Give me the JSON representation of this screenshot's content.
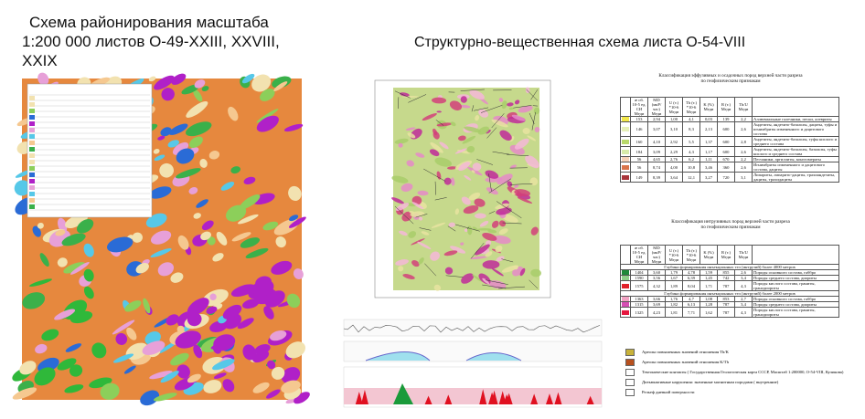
{
  "left": {
    "title_lines": [
      "Схема районирования масштаба",
      "1:200 000 листов О-49-XXIII, XXVIII,",
      "XXIX"
    ]
  },
  "right": {
    "title": "Структурно-вещественная схема листа О-54-VIII",
    "table1": {
      "title_lines": [
        "Классификация эффузивных и осадочных пород верхней части разреза",
        "по геофизическим признакам"
      ],
      "header": [
        "æ об. 10-5 ед. СИ Меди",
        "MD (мкР/час) Меди",
        "U (т.) *10-6 Меди",
        "Th (т.) *10-6 Меди",
        "K (%) Меди",
        "R (т.) Меди",
        "Th/U Меди"
      ],
      "rows": [
        {
          "color": "#f3e84a",
          "cells": [
            "153",
            "2,94",
            "1,00",
            "4,1",
            "0,03",
            "139",
            "2,2"
          ],
          "text": "Аллювиальные галечники, пески, алевриты"
        },
        {
          "color": "#e6f0b8",
          "cells": [
            "146",
            "3,07",
            "3,10",
            "8,3",
            "2,13",
            "600",
            "2,6"
          ],
          "text": "Андезиты, андезито-базальты, дациты, туфы и игнимбриты измененного и дацитового состава"
        },
        {
          "color": "#b9d96a",
          "cells": [
            "160",
            "4,10",
            "2,92",
            "5,5",
            "1,37",
            "600",
            "2,8"
          ],
          "text": "Андезиты, андезито-базальты, туфы кислого и среднего состава"
        },
        {
          "color": "#d7eaa9",
          "cells": [
            "184",
            "3,09",
            "2,29",
            "4,3",
            "1,17",
            "600",
            "2,6"
          ],
          "text": "Андезиты, андезито-базальты, базальты, туфы кислого и среднего состава"
        },
        {
          "color": "#f6d2b8",
          "cells": [
            "56",
            "4,65",
            "2,76",
            "6,2",
            "1,11",
            "670",
            "2,2"
          ],
          "text": "Песчаники, аргиллиты, конгломераты"
        },
        {
          "color": "#d9744a",
          "cells": [
            "56",
            "8,74",
            "4,00",
            "10,8",
            "3,46",
            "360",
            "2,6"
          ],
          "text": "Игнимбриты измененного и дацитового состава, дациты"
        },
        {
          "color": "#a8343a",
          "cells": [
            "149",
            "8,39",
            "3,64",
            "12,1",
            "3,27",
            "720",
            "3,1"
          ],
          "text": "Липариты, липарито-дациты, трахиандезиты, дациты, трахидациты"
        }
      ]
    },
    "table2": {
      "title_lines": [
        "Классификация интрузивных пород верхней части разреза",
        "по геофизическим признакам"
      ],
      "header": [
        "æ об. 10-5 ед. СИ Меди",
        "MD (мкР/час) Меди",
        "U (т.) *10-6 Меди",
        "Th (т.) *10-6 Меди",
        "K (%) Меди",
        "R (т.) Меди",
        "Th/U Меди"
      ],
      "groups": [
        {
          "title": "Глубина формирования инъекционных тел (интрузий) более 4000 метров",
          "rows": [
            {
              "color": "#1f8a3a",
              "cells": [
                "1404",
                "3,60",
                "1,79",
                "4,78",
                "1,59",
                "855",
                "2,6"
              ],
              "text": "Породы основного состава, габбро"
            },
            {
              "color": "#8fd08a",
              "cells": [
                "1590",
                "3,56",
                "1,67",
                "6,39",
                "1,45",
                "742",
                "3,4"
              ],
              "text": "Породы среднего состава, диориты"
            },
            {
              "color": "#e0202a",
              "cells": [
                "1575",
                "4,32",
                "1,89",
                "8,04",
                "1,71",
                "787",
                "4,3"
              ],
              "text": "Породы кислого состава, граниты, гранодиориты"
            }
          ]
        },
        {
          "title": "Глубина формирования инъекционных тел (интрузий) более 2000 метров",
          "rows": [
            {
              "color": "#f2a3c4",
              "cells": [
                "1363",
                "3,66",
                "1,76",
                "4,7",
                "1,08",
                "853",
                "2,7"
              ],
              "text": "Породы основного состава, габбро"
            },
            {
              "color": "#d64fb4",
              "cells": [
                "1315",
                "3,69",
                "1,82",
                "6,13",
                "1,28",
                "787",
                "3,4"
              ],
              "text": "Породы среднего состава, диориты"
            },
            {
              "color": "#e5173f",
              "cells": [
                "1325",
                "4,23",
                "1,81",
                "7,71",
                "1,62",
                "787",
                "4,3"
              ],
              "text": "Породы кислого состава, граниты, гранодиориты"
            }
          ]
        }
      ]
    },
    "legend": [
      {
        "color": "#c8b23a",
        "text": "Ареолы повышенных значений отношения Th/K"
      },
      {
        "color": "#b8501e",
        "text": "Ареолы повышенных значений отношения K/Th"
      },
      {
        "color": "",
        "text": "Тектонические контакты ( Государственная Геологическая карта СССР, Масштаб 1:200000, O-54-VIII, Куликова)"
      },
      {
        "color": "",
        "text": "Дизъюнктивные нарушения: значенные магнитным породами ( внутренние)"
      },
      {
        "color": "",
        "text": "Рельеф дневной поверхности"
      }
    ]
  }
}
